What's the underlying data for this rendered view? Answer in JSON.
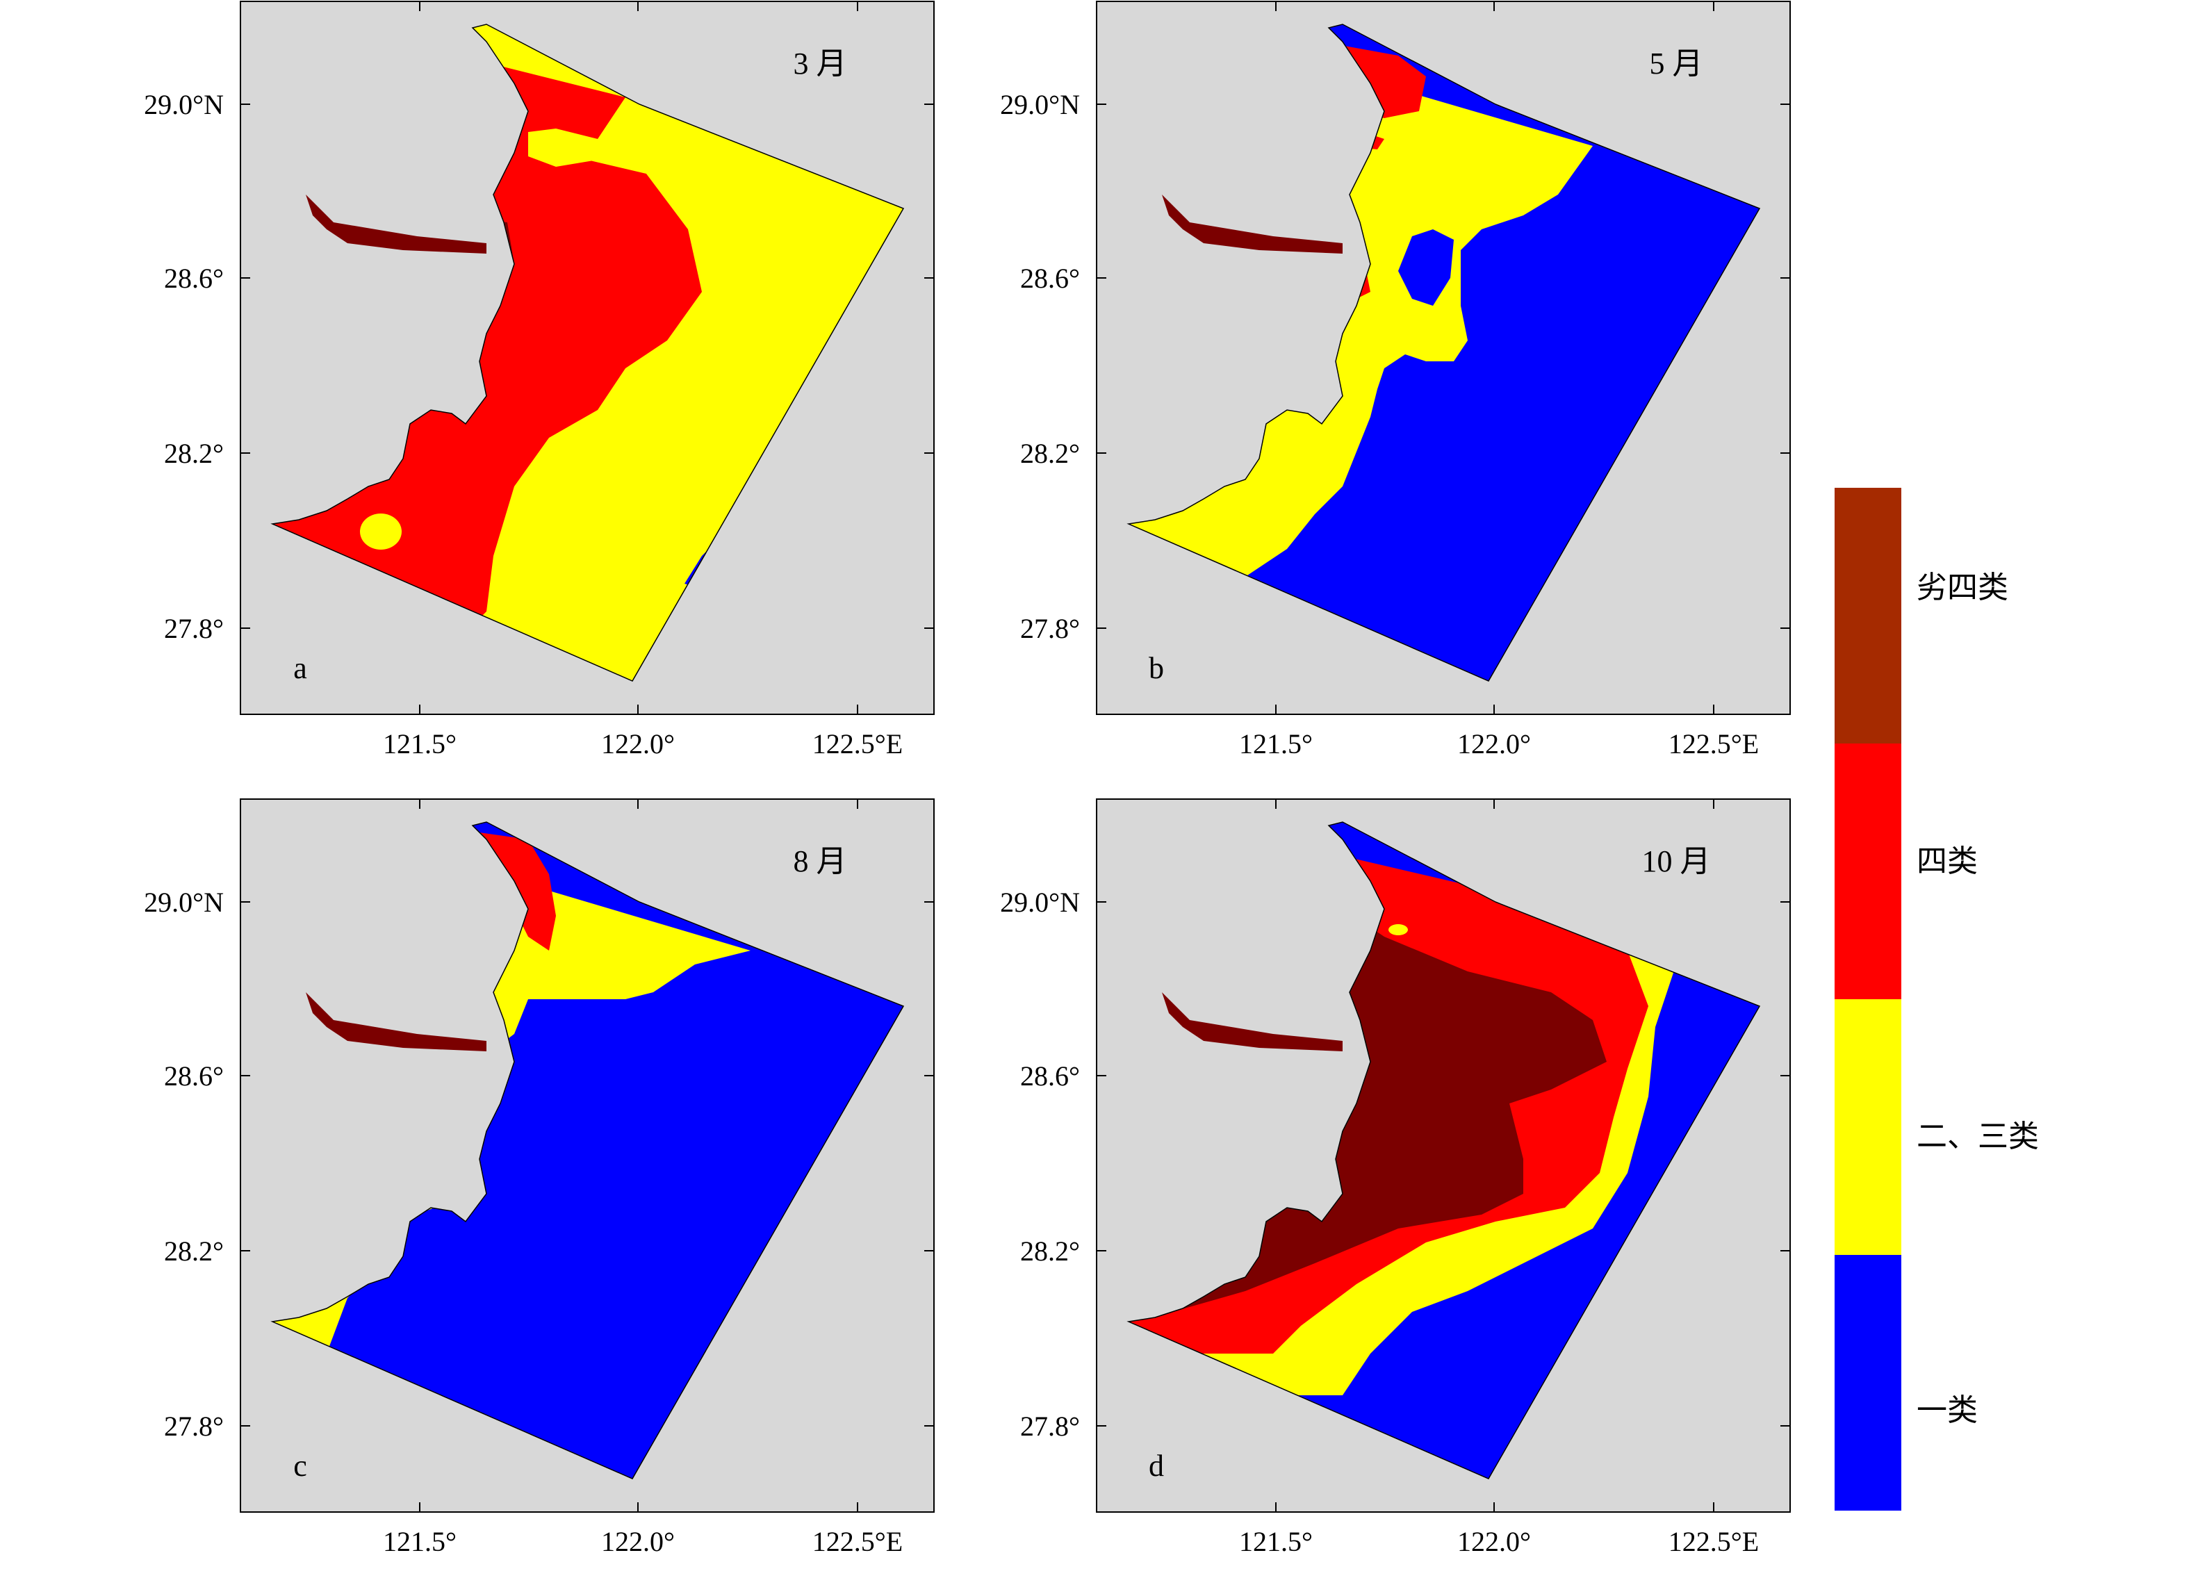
{
  "panels": [
    {
      "id": "a",
      "letter": "a",
      "month": "3 月"
    },
    {
      "id": "b",
      "letter": "b",
      "month": "5 月"
    },
    {
      "id": "c",
      "letter": "c",
      "month": "8 月"
    },
    {
      "id": "d",
      "letter": "d",
      "month": "10 月"
    }
  ],
  "axes": {
    "x_ticks": [
      "121.5°",
      "122.0°",
      "122.5°E"
    ],
    "y_ticks": [
      "29.0°N",
      "28.6°",
      "28.2°",
      "27.8°"
    ]
  },
  "legend": {
    "items": [
      {
        "label": "劣四类",
        "color": "#a52a00"
      },
      {
        "label": "四类",
        "color": "#ff0000"
      },
      {
        "label": "二、三类",
        "color": "#ffff00"
      },
      {
        "label": "一类",
        "color": "#0000ff"
      }
    ]
  },
  "colors": {
    "worse_than_iv": "#7b0000",
    "class_iv": "#ff0000",
    "class_ii_iii": "#ffff00",
    "class_i": "#0000ff",
    "land": "#d8d8d8"
  }
}
